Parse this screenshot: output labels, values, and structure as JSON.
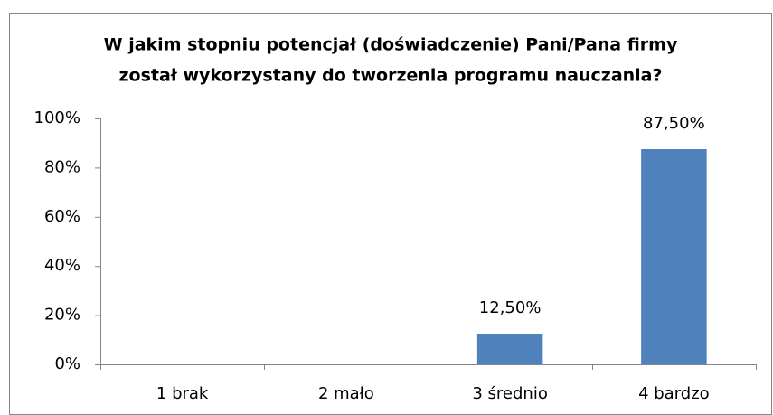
{
  "chart_data": {
    "type": "bar",
    "title": [
      "W jakim stopniu potencjał (doświadczenie) Pani/Pana firmy",
      "został wykorzystany do tworzenia programu nauczania?"
    ],
    "categories": [
      "1 brak",
      "2 mało",
      "3 średnio",
      "4 bardzo"
    ],
    "values": [
      0,
      0,
      12.5,
      87.5
    ],
    "value_labels": [
      null,
      null,
      "12,50%",
      "87,50%"
    ],
    "color": "#4f81bd",
    "ylim": [
      0,
      100
    ],
    "yticks": [
      {
        "value": 0,
        "label": "0%"
      },
      {
        "value": 20,
        "label": "20%"
      },
      {
        "value": 40,
        "label": "40%"
      },
      {
        "value": 60,
        "label": "60%"
      },
      {
        "value": 80,
        "label": "80%"
      },
      {
        "value": 100,
        "label": "100%"
      }
    ],
    "grid": false
  }
}
